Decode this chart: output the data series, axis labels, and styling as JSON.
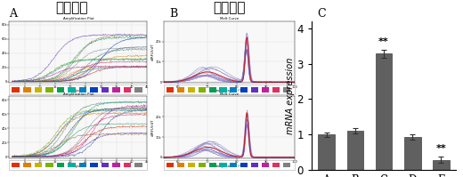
{
  "title_A": "扩增曲线",
  "title_B": "溶解曲线",
  "bar_categories": [
    "A",
    "B",
    "C",
    "D",
    "E"
  ],
  "bar_values": [
    1.0,
    1.1,
    3.28,
    0.93,
    0.28
  ],
  "bar_errors": [
    0.06,
    0.08,
    0.12,
    0.07,
    0.09
  ],
  "bar_color": "#606060",
  "bar_edge_color": "#404040",
  "ylabel": "mRNA expression",
  "ylim": [
    0,
    4.2
  ],
  "yticks": [
    0,
    1,
    2,
    3,
    4
  ],
  "sig_C": "**",
  "sig_E": "**",
  "background_color": "#ffffff",
  "grid_color": "#d0d0d0",
  "legend_colors": [
    "#e03000",
    "#e08000",
    "#c8b400",
    "#80b000",
    "#00a050",
    "#00b0a0",
    "#0080c0",
    "#0040c0",
    "#6030c0",
    "#c020a0",
    "#e03060",
    "#808080"
  ],
  "amp_bg": "#f8f8f8",
  "melt_bg": "#f8f8f8"
}
